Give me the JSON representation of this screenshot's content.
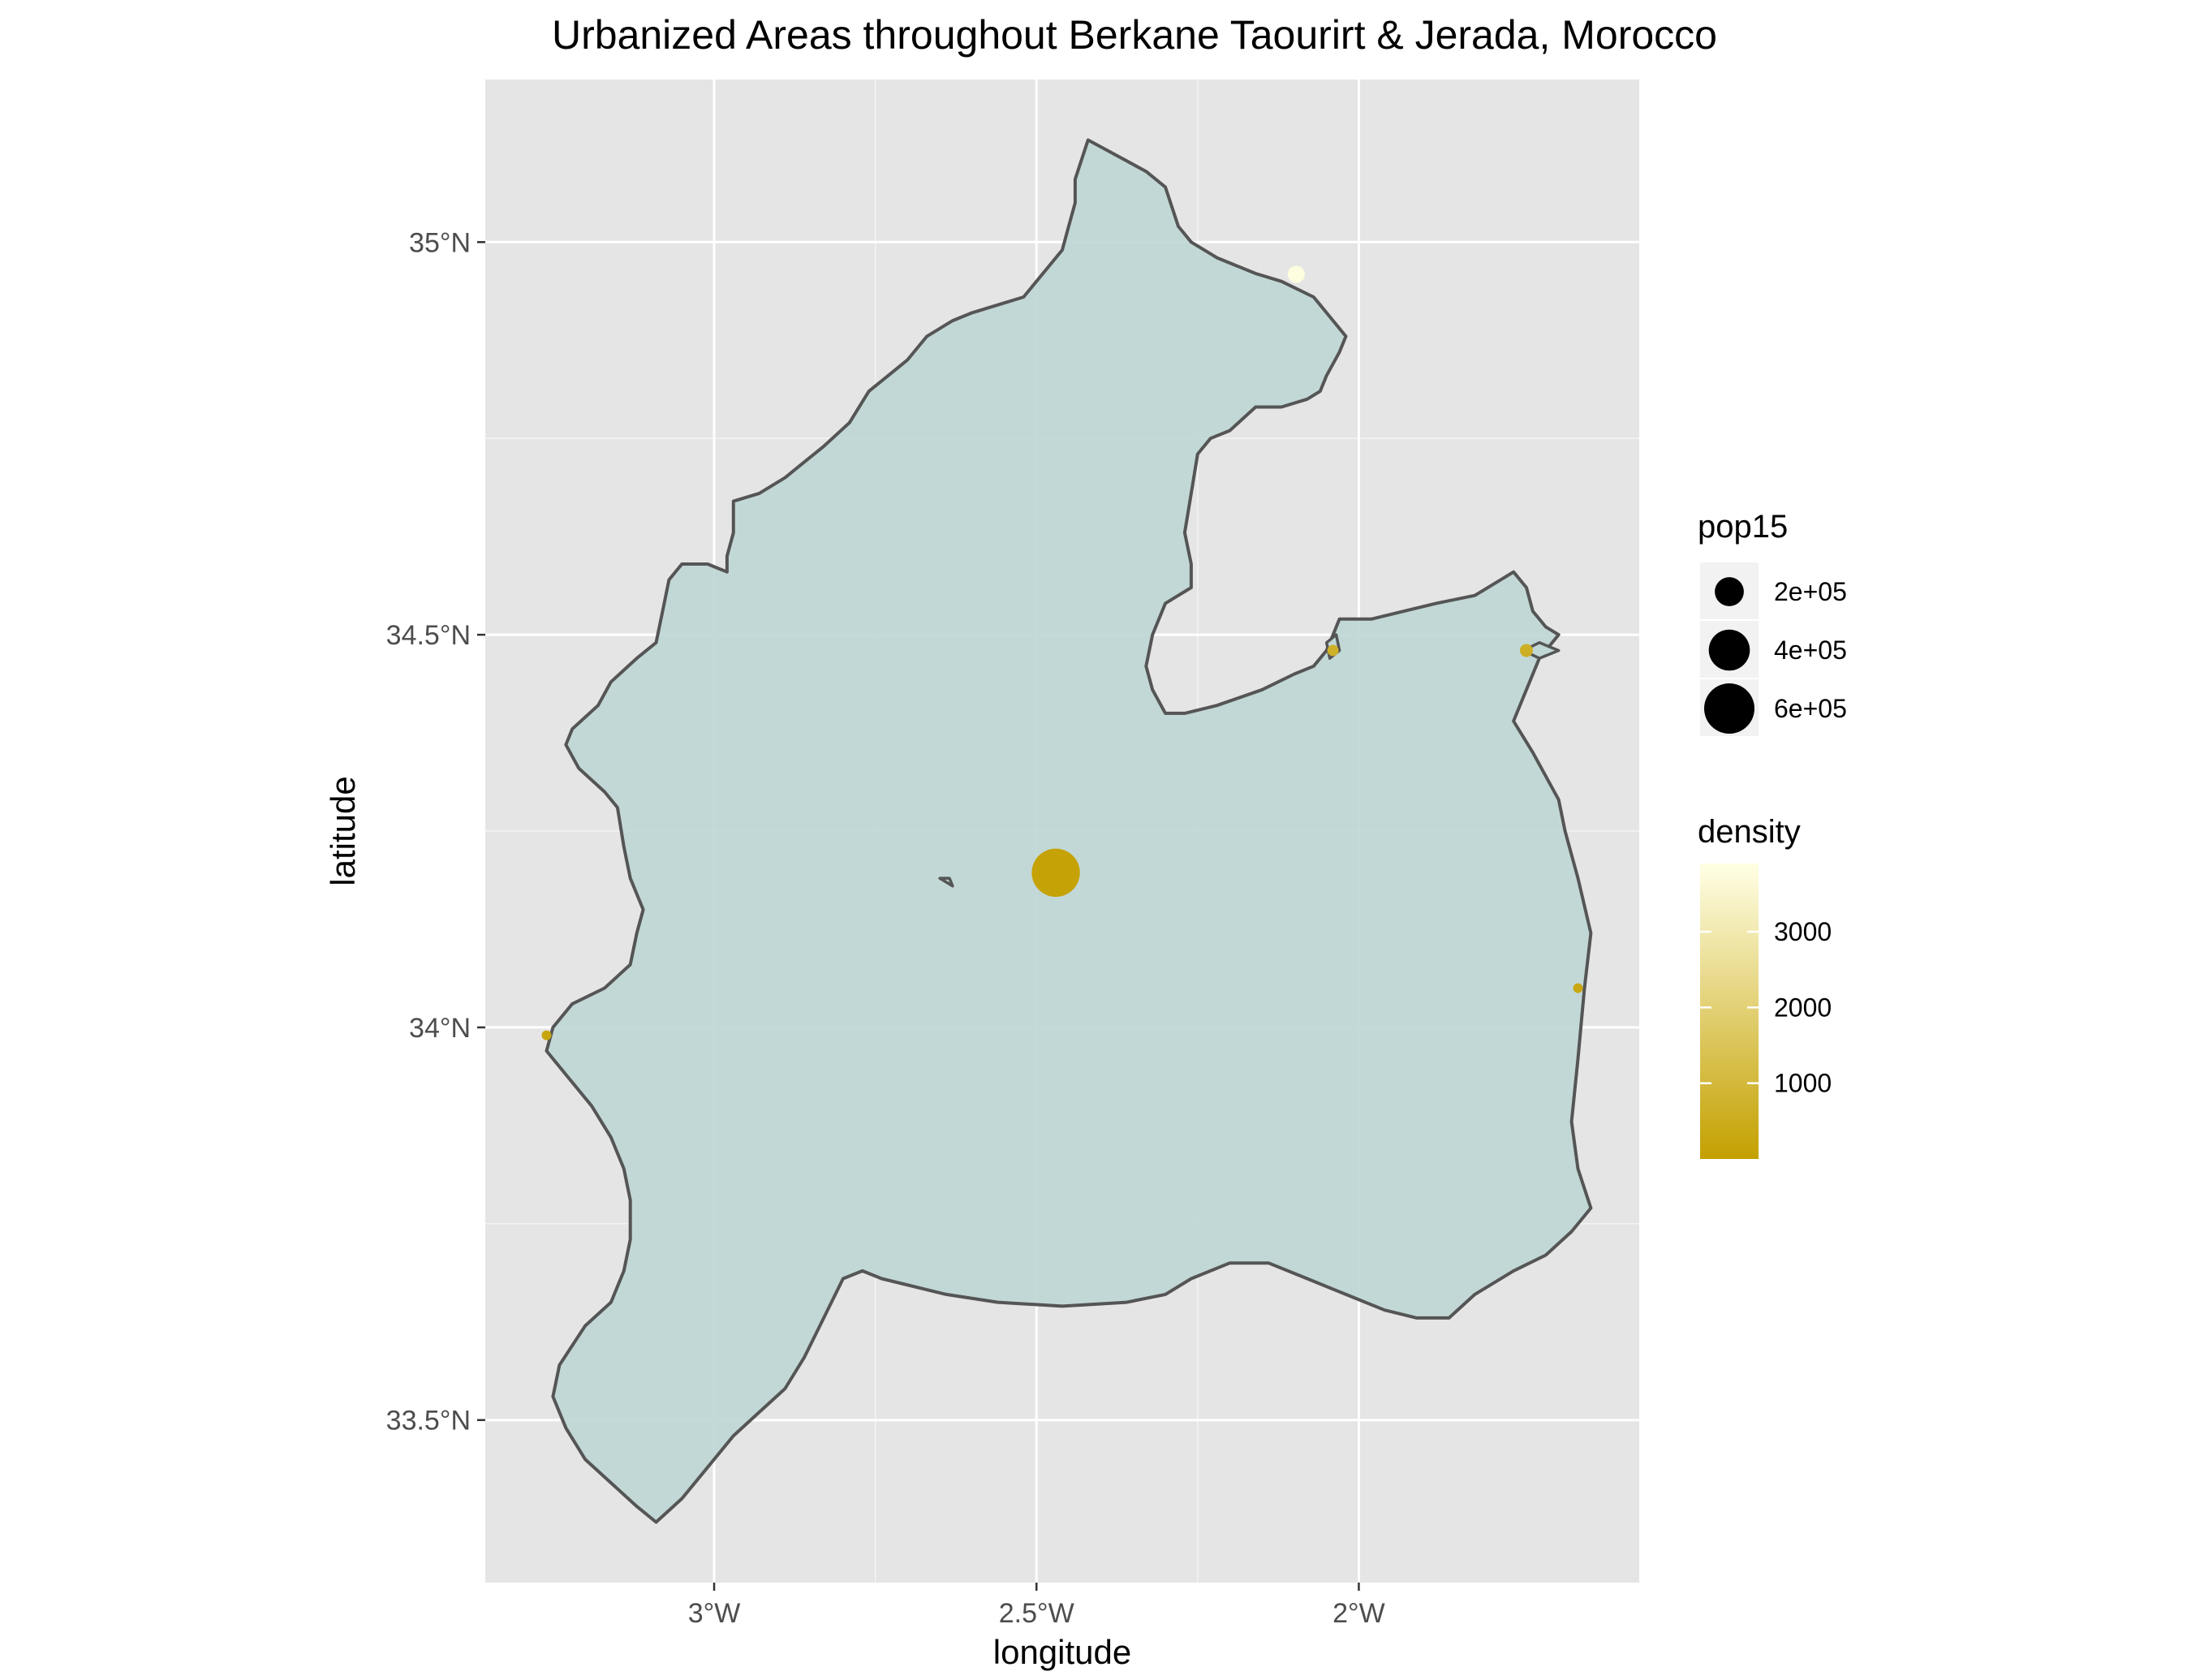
{
  "chart_data": {
    "type": "scatter",
    "title": "Urbanized Areas throughout Berkane Taourirt & Jerada, Morocco",
    "xlabel": "longitude",
    "ylabel": "latitude",
    "xlim": [
      -3.355,
      -1.565
    ],
    "ylim": [
      33.293,
      35.207
    ],
    "x_ticks": [
      {
        "value": -3.0,
        "label": "3°W"
      },
      {
        "value": -2.5,
        "label": "2.5°W"
      },
      {
        "value": -2.0,
        "label": "2°W"
      }
    ],
    "y_ticks": [
      {
        "value": 33.5,
        "label": "33.5°N"
      },
      {
        "value": 34.0,
        "label": "34°N"
      },
      {
        "value": 34.5,
        "label": "34.5°N"
      },
      {
        "value": 35.0,
        "label": "35°N"
      }
    ],
    "grid": true,
    "panel_background": "#e5e5e5",
    "grid_color": "#ffffff",
    "region_fill": "#bfd7d5",
    "region_stroke": "#555555",
    "region_outline": [
      [
        -2.42,
        35.13
      ],
      [
        -2.33,
        35.09
      ],
      [
        -2.3,
        35.07
      ],
      [
        -2.28,
        35.02
      ],
      [
        -2.26,
        35.0
      ],
      [
        -2.22,
        34.98
      ],
      [
        -2.16,
        34.96
      ],
      [
        -2.12,
        34.95
      ],
      [
        -2.07,
        34.93
      ],
      [
        -2.06,
        34.92
      ],
      [
        -2.04,
        34.9
      ],
      [
        -2.02,
        34.88
      ],
      [
        -2.03,
        34.86
      ],
      [
        -2.05,
        34.83
      ],
      [
        -2.06,
        34.81
      ],
      [
        -2.08,
        34.8
      ],
      [
        -2.12,
        34.79
      ],
      [
        -2.16,
        34.79
      ],
      [
        -2.2,
        34.76
      ],
      [
        -2.23,
        34.75
      ],
      [
        -2.25,
        34.73
      ],
      [
        -2.26,
        34.68
      ],
      [
        -2.27,
        34.63
      ],
      [
        -2.26,
        34.59
      ],
      [
        -2.26,
        34.56
      ],
      [
        -2.28,
        34.55
      ],
      [
        -2.3,
        34.54
      ],
      [
        -2.32,
        34.5
      ],
      [
        -2.33,
        34.46
      ],
      [
        -2.32,
        34.43
      ],
      [
        -2.3,
        34.4
      ],
      [
        -2.27,
        34.4
      ],
      [
        -2.22,
        34.41
      ],
      [
        -2.15,
        34.43
      ],
      [
        -2.1,
        34.45
      ],
      [
        -2.07,
        34.46
      ],
      [
        -2.05,
        34.48
      ],
      [
        -2.04,
        34.5
      ],
      [
        -2.03,
        34.52
      ],
      [
        -2.01,
        34.52
      ],
      [
        -1.98,
        34.52
      ],
      [
        -1.93,
        34.53
      ],
      [
        -1.88,
        34.54
      ],
      [
        -1.82,
        34.55
      ],
      [
        -1.78,
        34.57
      ],
      [
        -1.76,
        34.58
      ],
      [
        -1.74,
        34.56
      ],
      [
        -1.73,
        34.53
      ],
      [
        -1.71,
        34.51
      ],
      [
        -1.69,
        34.5
      ],
      [
        -1.72,
        34.47
      ],
      [
        -1.74,
        34.43
      ],
      [
        -1.76,
        34.39
      ],
      [
        -1.73,
        34.35
      ],
      [
        -1.71,
        34.32
      ],
      [
        -1.69,
        34.29
      ],
      [
        -1.68,
        34.25
      ],
      [
        -1.66,
        34.19
      ],
      [
        -1.64,
        34.12
      ],
      [
        -1.65,
        34.05
      ],
      [
        -1.66,
        33.96
      ],
      [
        -1.67,
        33.88
      ],
      [
        -1.66,
        33.82
      ],
      [
        -1.64,
        33.77
      ],
      [
        -1.67,
        33.74
      ],
      [
        -1.71,
        33.71
      ],
      [
        -1.76,
        33.69
      ],
      [
        -1.82,
        33.66
      ],
      [
        -1.86,
        33.63
      ],
      [
        -1.91,
        33.63
      ],
      [
        -1.96,
        33.64
      ],
      [
        -2.02,
        33.66
      ],
      [
        -2.08,
        33.68
      ],
      [
        -2.14,
        33.7
      ],
      [
        -2.2,
        33.7
      ],
      [
        -2.26,
        33.68
      ],
      [
        -2.3,
        33.66
      ],
      [
        -2.36,
        33.65
      ],
      [
        -2.46,
        33.645
      ],
      [
        -2.56,
        33.65
      ],
      [
        -2.64,
        33.66
      ],
      [
        -2.74,
        33.68
      ],
      [
        -2.77,
        33.69
      ],
      [
        -2.8,
        33.68
      ],
      [
        -2.83,
        33.63
      ],
      [
        -2.86,
        33.58
      ],
      [
        -2.89,
        33.54
      ],
      [
        -2.93,
        33.51
      ],
      [
        -2.97,
        33.48
      ],
      [
        -3.01,
        33.44
      ],
      [
        -3.05,
        33.4
      ],
      [
        -3.09,
        33.37
      ],
      [
        -3.12,
        33.39
      ],
      [
        -3.16,
        33.42
      ],
      [
        -3.2,
        33.45
      ],
      [
        -3.23,
        33.49
      ],
      [
        -3.25,
        33.53
      ],
      [
        -3.24,
        33.57
      ],
      [
        -3.2,
        33.62
      ],
      [
        -3.16,
        33.65
      ],
      [
        -3.14,
        33.69
      ],
      [
        -3.13,
        33.73
      ],
      [
        -3.13,
        33.78
      ],
      [
        -3.14,
        33.82
      ],
      [
        -3.16,
        33.86
      ],
      [
        -3.19,
        33.9
      ],
      [
        -3.23,
        33.94
      ],
      [
        -3.26,
        33.97
      ],
      [
        -3.25,
        34.0
      ],
      [
        -3.22,
        34.03
      ],
      [
        -3.17,
        34.05
      ],
      [
        -3.13,
        34.08
      ],
      [
        -3.12,
        34.12
      ],
      [
        -3.11,
        34.15
      ],
      [
        -3.13,
        34.19
      ],
      [
        -3.14,
        34.23
      ],
      [
        -3.15,
        34.28
      ],
      [
        -3.17,
        34.3
      ],
      [
        -3.21,
        34.33
      ],
      [
        -3.23,
        34.36
      ],
      [
        -3.22,
        34.38
      ],
      [
        -3.18,
        34.41
      ],
      [
        -3.16,
        34.44
      ],
      [
        -3.12,
        34.47
      ],
      [
        -3.09,
        34.49
      ],
      [
        -3.08,
        34.53
      ],
      [
        -3.07,
        34.57
      ],
      [
        -3.05,
        34.59
      ],
      [
        -3.01,
        34.59
      ],
      [
        -2.98,
        34.58
      ],
      [
        -2.98,
        34.6
      ],
      [
        -2.97,
        34.63
      ],
      [
        -2.97,
        34.67
      ],
      [
        -2.93,
        34.68
      ],
      [
        -2.89,
        34.7
      ],
      [
        -2.86,
        34.72
      ],
      [
        -2.83,
        34.74
      ],
      [
        -2.79,
        34.77
      ],
      [
        -2.76,
        34.81
      ],
      [
        -2.73,
        34.83
      ],
      [
        -2.7,
        34.85
      ],
      [
        -2.67,
        34.88
      ],
      [
        -2.63,
        34.9
      ],
      [
        -2.6,
        34.91
      ],
      [
        -2.56,
        34.92
      ],
      [
        -2.52,
        34.93
      ],
      [
        -2.5,
        34.95
      ],
      [
        -2.46,
        34.99
      ],
      [
        -2.45,
        35.02
      ],
      [
        -2.44,
        35.05
      ],
      [
        -2.44,
        35.08
      ],
      [
        -2.42,
        35.13
      ]
    ],
    "small_polygons": [
      [
        [
          -1.745,
          34.48
        ],
        [
          -1.72,
          34.49
        ],
        [
          -1.69,
          34.48
        ],
        [
          -1.72,
          34.47
        ],
        [
          -1.745,
          34.48
        ]
      ],
      [
        [
          -2.045,
          34.47
        ],
        [
          -2.03,
          34.48
        ],
        [
          -2.035,
          34.5
        ],
        [
          -2.05,
          34.49
        ],
        [
          -2.045,
          34.47
        ]
      ],
      [
        [
          -2.65,
          34.19
        ],
        [
          -2.635,
          34.19
        ],
        [
          -2.63,
          34.18
        ],
        [
          -2.64,
          34.185
        ],
        [
          -2.65,
          34.19
        ]
      ]
    ],
    "points": [
      {
        "x": -2.47,
        "y": 34.197,
        "pop15": 550000,
        "density": 80
      },
      {
        "x": -2.097,
        "y": 34.959,
        "pop15": 70000,
        "density": 3800
      },
      {
        "x": -2.04,
        "y": 34.48,
        "pop15": 30000,
        "density": 700
      },
      {
        "x": -1.74,
        "y": 34.48,
        "pop15": 40000,
        "density": 600
      },
      {
        "x": -1.66,
        "y": 34.05,
        "pop15": 20000,
        "density": 300
      },
      {
        "x": -3.26,
        "y": 33.99,
        "pop15": 15000,
        "density": 200
      }
    ],
    "legend_size": {
      "title": "pop15",
      "entries": [
        {
          "label": "2e+05",
          "value": 200000
        },
        {
          "label": "4e+05",
          "value": 400000
        },
        {
          "label": "6e+05",
          "value": 600000
        }
      ]
    },
    "legend_color": {
      "title": "density",
      "min": 0,
      "max": 3900,
      "low_color": "#c4a000",
      "high_color": "#ffffe5",
      "ticks": [
        {
          "label": "1000",
          "value": 1000
        },
        {
          "label": "2000",
          "value": 2000
        },
        {
          "label": "3000",
          "value": 3000
        }
      ]
    },
    "legend_position": "right"
  }
}
